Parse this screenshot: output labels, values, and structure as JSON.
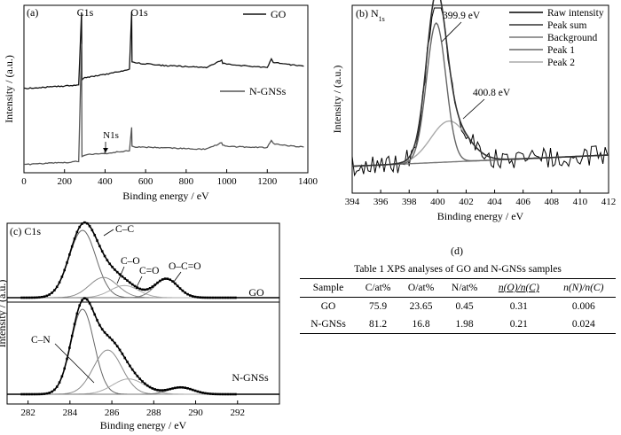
{
  "chart_data": [
    {
      "panel": "(a)",
      "type": "line",
      "xlabel": "Binding energy / eV",
      "ylabel": "Intensity / (a.u.)",
      "xlim": [
        0,
        1400
      ],
      "x_ticks": [
        0,
        200,
        400,
        600,
        800,
        1000,
        1200,
        1400
      ],
      "annotations": [
        "C1s",
        "O1s",
        "N1s"
      ],
      "series": [
        {
          "name": "GO",
          "color": "#111111",
          "offset": 1.0,
          "x": [
            0,
            100,
            200,
            270,
            284,
            286,
            300,
            400,
            520,
            531,
            533,
            560,
            700,
            900,
            975,
            980,
            1000,
            1200,
            1220,
            1230,
            1300,
            1380
          ],
          "y": [
            0.0,
            0.02,
            0.04,
            0.06,
            1.2,
            0.14,
            0.17,
            0.22,
            0.3,
            1.2,
            0.42,
            0.4,
            0.36,
            0.33,
            0.44,
            0.4,
            0.38,
            0.33,
            0.46,
            0.41,
            0.38,
            0.35
          ]
        },
        {
          "name": "N-GNSs",
          "color": "#555555",
          "offset": 0.0,
          "x": [
            0,
            100,
            200,
            270,
            284,
            286,
            300,
            398,
            400,
            402,
            520,
            531,
            533,
            560,
            700,
            900,
            975,
            980,
            1000,
            1200,
            1220,
            1230,
            1300,
            1380
          ],
          "y": [
            0.0,
            0.02,
            0.03,
            0.05,
            1.7,
            0.12,
            0.14,
            0.16,
            0.22,
            0.16,
            0.2,
            0.52,
            0.26,
            0.25,
            0.24,
            0.22,
            0.31,
            0.28,
            0.26,
            0.24,
            0.35,
            0.3,
            0.27,
            0.25
          ]
        }
      ]
    },
    {
      "panel": "(b)",
      "type": "line",
      "title_prefix": "N",
      "title_sub": "1s",
      "xlabel": "Binding energy / eV",
      "ylabel": "Intensity / (a.u.)",
      "xlim": [
        394,
        412
      ],
      "x_ticks": [
        394,
        396,
        398,
        400,
        402,
        404,
        406,
        408,
        410,
        412
      ],
      "annotations": [
        "399.9 eV",
        "400.8 eV"
      ],
      "peaks": [
        {
          "name": "Peak 1",
          "center": 399.9,
          "fwhm": 1.6,
          "height": 0.75,
          "color": "#666666"
        },
        {
          "name": "Peak 2",
          "center": 400.8,
          "fwhm": 3.0,
          "height": 0.22,
          "color": "#aaaaaa"
        }
      ],
      "background": {
        "name": "Background",
        "start": 0.04,
        "end": 0.1,
        "color": "#777777"
      },
      "legend": [
        "Raw intensity",
        "Peak sum",
        "Background",
        "Peak 1",
        "Peak 2"
      ],
      "legend_position": "top-right"
    },
    {
      "panel": "(c)",
      "type": "line",
      "title": "C1s",
      "xlabel": "Binding energy / eV",
      "ylabel": "Intensity / (a.u.)",
      "xlim": [
        281,
        294
      ],
      "x_ticks": [
        282,
        284,
        286,
        288,
        290,
        292
      ],
      "subplots": [
        {
          "name": "GO",
          "annotations": [
            "C–C",
            "C–O",
            "C=O",
            "O–C=O"
          ],
          "peaks": [
            {
              "center": 284.6,
              "fwhm": 1.5,
              "height": 1.0
            },
            {
              "center": 285.6,
              "fwhm": 1.6,
              "height": 0.3
            },
            {
              "center": 286.6,
              "fwhm": 1.6,
              "height": 0.18
            },
            {
              "center": 288.6,
              "fwhm": 1.3,
              "height": 0.28
            }
          ]
        },
        {
          "name": "N-GNSs",
          "annotations": [
            "C–N"
          ],
          "peaks": [
            {
              "center": 284.6,
              "fwhm": 1.3,
              "height": 1.0
            },
            {
              "center": 285.8,
              "fwhm": 1.6,
              "height": 0.52
            },
            {
              "center": 286.8,
              "fwhm": 1.8,
              "height": 0.18
            },
            {
              "center": 289.3,
              "fwhm": 1.4,
              "height": 0.08
            }
          ]
        }
      ]
    },
    {
      "panel": "(d)",
      "type": "table",
      "caption": "Table 1  XPS analyses of GO and N-GNSs samples",
      "columns": [
        "Sample",
        "C/at%",
        "O/at%",
        "N/at%",
        "n(O)/n(C)",
        "n(N)/n(C)"
      ],
      "rows": [
        [
          "GO",
          "75.9",
          "23.65",
          "0.45",
          "0.31",
          "0.006"
        ],
        [
          "N-GNSs",
          "81.2",
          "16.8",
          "1.98",
          "0.21",
          "0.024"
        ]
      ]
    }
  ]
}
